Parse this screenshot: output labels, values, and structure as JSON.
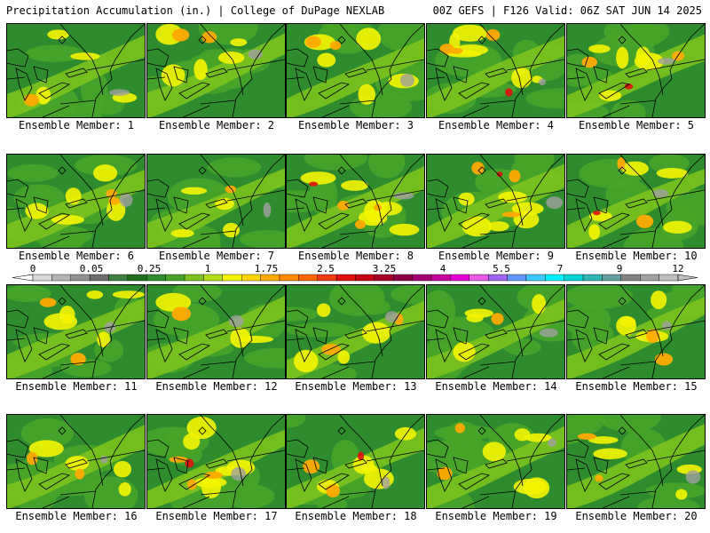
{
  "header": {
    "title_left": "Precipitation Accumulation (in.) | College of DuPage NEXLAB",
    "title_right": "00Z GEFS | F126 Valid: 06Z SAT JUN 14 2025"
  },
  "panels": [
    {
      "label": "Ensemble Member: 1",
      "intensity": 0.35
    },
    {
      "label": "Ensemble Member: 2",
      "intensity": 0.55
    },
    {
      "label": "Ensemble Member: 3",
      "intensity": 0.55
    },
    {
      "label": "Ensemble Member: 4",
      "intensity": 0.75
    },
    {
      "label": "Ensemble Member: 5",
      "intensity": 0.6
    },
    {
      "label": "Ensemble Member: 6",
      "intensity": 0.55
    },
    {
      "label": "Ensemble Member: 7",
      "intensity": 0.35
    },
    {
      "label": "Ensemble Member: 8",
      "intensity": 0.7
    },
    {
      "label": "Ensemble Member: 9",
      "intensity": 0.7
    },
    {
      "label": "Ensemble Member: 10",
      "intensity": 0.6
    },
    {
      "label": "Ensemble Member: 11",
      "intensity": 0.5
    },
    {
      "label": "Ensemble Member: 12",
      "intensity": 0.25
    },
    {
      "label": "Ensemble Member: 13",
      "intensity": 0.4
    },
    {
      "label": "Ensemble Member: 14",
      "intensity": 0.3
    },
    {
      "label": "Ensemble Member: 15",
      "intensity": 0.45
    },
    {
      "label": "Ensemble Member: 16",
      "intensity": 0.45
    },
    {
      "label": "Ensemble Member: 17",
      "intensity": 0.85
    },
    {
      "label": "Ensemble Member: 18",
      "intensity": 0.6
    },
    {
      "label": "Ensemble Member: 19",
      "intensity": 0.55
    },
    {
      "label": "Ensemble Member: 20",
      "intensity": 0.4
    }
  ],
  "colorbar": {
    "labels": [
      "0",
      "0.05",
      "0.25",
      "1",
      "1.75",
      "2.5",
      "3.25",
      "4",
      "5.5",
      "7",
      "9",
      "12"
    ],
    "colors": [
      "#d8d8d8",
      "#b4b4b4",
      "#909090",
      "#6e6e6e",
      "#3f7f3f",
      "#1f6f1f",
      "#2e8c2e",
      "#48a428",
      "#7cc21e",
      "#b4dc16",
      "#f4f400",
      "#ffd400",
      "#ffaa00",
      "#ff8a00",
      "#ff6400",
      "#f03c14",
      "#e01010",
      "#c80014",
      "#a50028",
      "#8c0046",
      "#a0006e",
      "#c8009b",
      "#e600d2",
      "#e65ae6",
      "#a064f0",
      "#6496ff",
      "#3cc8ff",
      "#00f0ff",
      "#00d2d2",
      "#32b4b4",
      "#64a0a0",
      "#828282",
      "#a0a0a0",
      "#bebebe"
    ]
  }
}
